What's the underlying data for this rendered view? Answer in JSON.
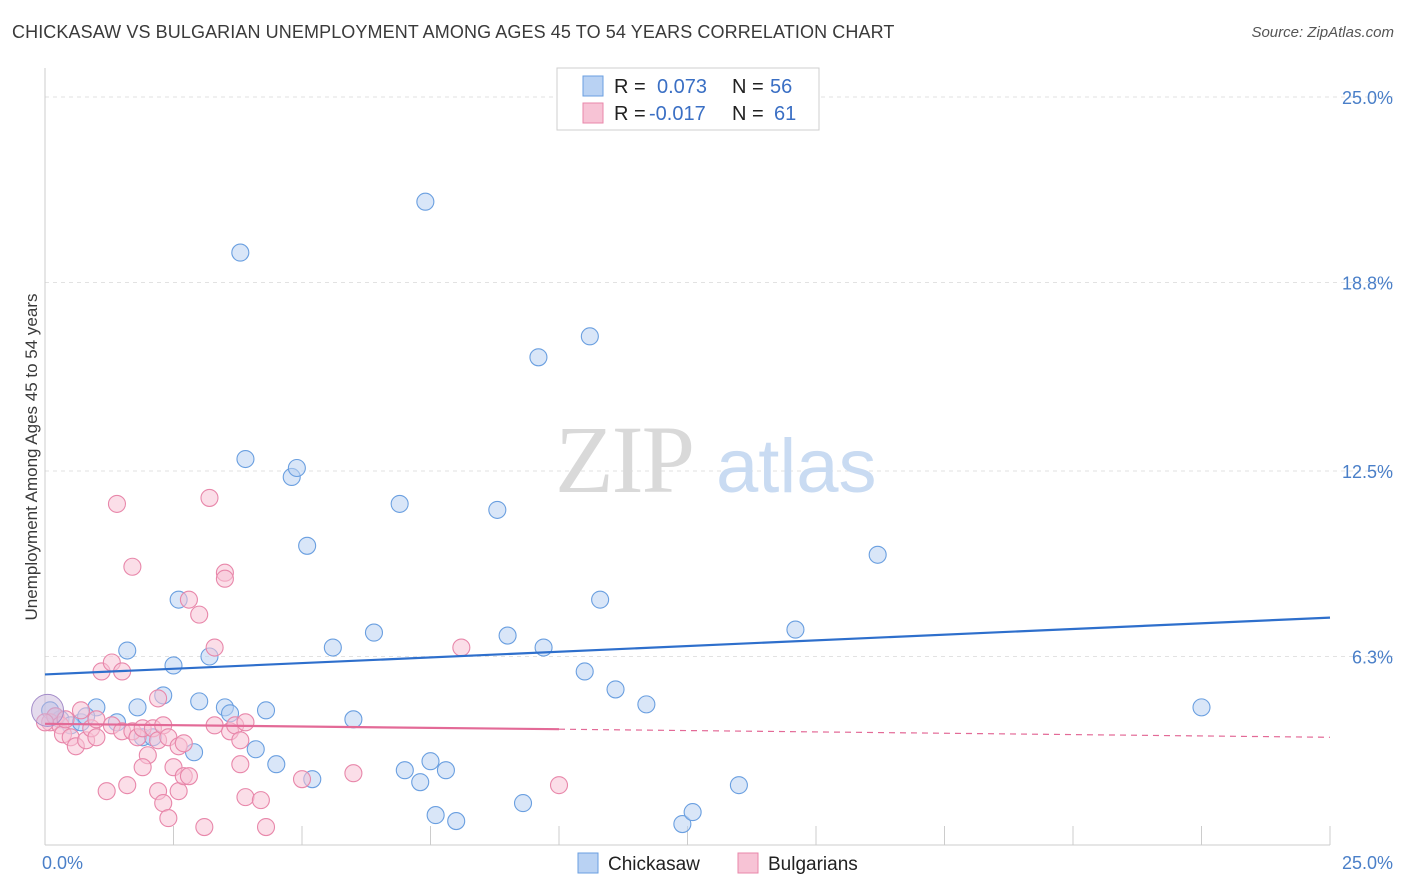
{
  "header": {
    "title": "CHICKASAW VS BULGARIAN UNEMPLOYMENT AMONG AGES 45 TO 54 YEARS CORRELATION CHART",
    "source": "Source: ZipAtlas.com"
  },
  "watermark": {
    "zip": "ZIP",
    "atlas": "atlas"
  },
  "chart_data": {
    "type": "scatter",
    "title": "CHICKASAW VS BULGARIAN UNEMPLOYMENT AMONG AGES 45 TO 54 YEARS CORRELATION CHART",
    "xlabel": "",
    "ylabel": "Unemployment Among Ages 45 to 54 years",
    "xlim": [
      0,
      25
    ],
    "ylim": [
      0,
      25
    ],
    "x_tick_labels": [
      "0.0%",
      "25.0%"
    ],
    "y_ticks": [
      {
        "value": 25.0,
        "label": "25.0%"
      },
      {
        "value": 18.8,
        "label": "18.8%"
      },
      {
        "value": 12.5,
        "label": "12.5%"
      },
      {
        "value": 6.3,
        "label": "6.3%"
      }
    ],
    "grid": true,
    "legend_position": "top-center",
    "legend": [
      {
        "name": "Chickasaw",
        "r_label": "R =",
        "r_value": "0.073",
        "n_label": "N =",
        "n_value": "56",
        "color": "#6a9fe0",
        "fill": "#b9d2f3"
      },
      {
        "name": "Bulgarians",
        "r_label": "R =",
        "r_value": "-0.017",
        "n_label": "N =",
        "n_value": "61",
        "color": "#e887aa",
        "fill": "#f7c3d5"
      }
    ],
    "series": [
      {
        "name": "Chickasaw",
        "color": "#6a9fe0",
        "fill": "#b9d2f3",
        "trend": {
          "x0": 0,
          "y0": 5.7,
          "x1": 25,
          "y1": 7.6,
          "color": "#2e6fcc",
          "dashed_from": null
        },
        "points": [
          [
            0.1,
            4.5
          ],
          [
            0.3,
            4.2
          ],
          [
            0.5,
            4.0
          ],
          [
            0.7,
            4.1
          ],
          [
            1.0,
            4.6
          ],
          [
            1.4,
            4.1
          ],
          [
            1.6,
            6.5
          ],
          [
            1.8,
            4.6
          ],
          [
            1.9,
            3.6
          ],
          [
            2.1,
            3.6
          ],
          [
            2.3,
            5.0
          ],
          [
            2.5,
            6.0
          ],
          [
            2.6,
            8.2
          ],
          [
            2.9,
            3.1
          ],
          [
            3.0,
            4.8
          ],
          [
            3.2,
            6.3
          ],
          [
            3.5,
            4.6
          ],
          [
            3.6,
            4.4
          ],
          [
            3.8,
            19.8
          ],
          [
            3.9,
            12.9
          ],
          [
            4.1,
            3.2
          ],
          [
            4.3,
            4.5
          ],
          [
            4.5,
            2.7
          ],
          [
            4.8,
            12.3
          ],
          [
            4.9,
            12.6
          ],
          [
            5.1,
            10.0
          ],
          [
            5.2,
            2.2
          ],
          [
            5.6,
            6.6
          ],
          [
            6.0,
            4.2
          ],
          [
            6.4,
            7.1
          ],
          [
            6.9,
            11.4
          ],
          [
            7.0,
            2.5
          ],
          [
            7.3,
            2.1
          ],
          [
            7.5,
            2.8
          ],
          [
            7.6,
            1.0
          ],
          [
            7.8,
            2.5
          ],
          [
            8.0,
            0.8
          ],
          [
            7.4,
            21.5
          ],
          [
            8.8,
            11.2
          ],
          [
            9.0,
            7.0
          ],
          [
            9.3,
            1.4
          ],
          [
            9.6,
            16.3
          ],
          [
            9.7,
            6.6
          ],
          [
            10.5,
            5.8
          ],
          [
            10.6,
            17.0
          ],
          [
            10.8,
            8.2
          ],
          [
            11.1,
            5.2
          ],
          [
            11.7,
            4.7
          ],
          [
            12.4,
            0.7
          ],
          [
            12.6,
            1.1
          ],
          [
            13.5,
            2.0
          ],
          [
            14.6,
            7.2
          ],
          [
            16.2,
            9.7
          ],
          [
            22.5,
            4.6
          ],
          [
            0.2,
            4.3
          ],
          [
            0.8,
            4.3
          ]
        ]
      },
      {
        "name": "Bulgarians",
        "color": "#e887aa",
        "fill": "#f7c3d5",
        "trend": {
          "x0": 0,
          "y0": 4.05,
          "x1": 25,
          "y1": 3.6,
          "color": "#e36a97",
          "dashed_from": 10.0
        },
        "points": [
          [
            0.1,
            4.1
          ],
          [
            0.2,
            4.3
          ],
          [
            0.3,
            4.0
          ],
          [
            0.35,
            3.7
          ],
          [
            0.4,
            4.2
          ],
          [
            0.5,
            3.6
          ],
          [
            0.6,
            3.3
          ],
          [
            0.7,
            4.5
          ],
          [
            0.8,
            3.5
          ],
          [
            0.9,
            3.9
          ],
          [
            1.0,
            3.6
          ],
          [
            1.0,
            4.2
          ],
          [
            1.1,
            5.8
          ],
          [
            1.2,
            1.8
          ],
          [
            1.3,
            4.0
          ],
          [
            1.3,
            6.1
          ],
          [
            1.5,
            3.8
          ],
          [
            1.5,
            5.8
          ],
          [
            1.6,
            2.0
          ],
          [
            1.7,
            3.8
          ],
          [
            1.8,
            3.6
          ],
          [
            1.9,
            3.9
          ],
          [
            2.0,
            3.0
          ],
          [
            2.1,
            3.9
          ],
          [
            2.2,
            3.5
          ],
          [
            2.3,
            4.0
          ],
          [
            2.4,
            3.6
          ],
          [
            2.5,
            2.6
          ],
          [
            2.6,
            3.3
          ],
          [
            2.7,
            3.4
          ],
          [
            1.4,
            11.4
          ],
          [
            1.7,
            9.3
          ],
          [
            1.9,
            2.6
          ],
          [
            2.2,
            1.8
          ],
          [
            2.3,
            1.4
          ],
          [
            2.4,
            0.9
          ],
          [
            2.6,
            1.8
          ],
          [
            2.7,
            2.3
          ],
          [
            2.8,
            2.3
          ],
          [
            2.2,
            4.9
          ],
          [
            2.8,
            8.2
          ],
          [
            3.0,
            7.7
          ],
          [
            3.2,
            11.6
          ],
          [
            3.3,
            6.6
          ],
          [
            3.5,
            9.1
          ],
          [
            3.5,
            8.9
          ],
          [
            3.6,
            3.8
          ],
          [
            3.7,
            4.0
          ],
          [
            3.8,
            3.5
          ],
          [
            3.8,
            2.7
          ],
          [
            3.9,
            4.1
          ],
          [
            3.9,
            1.6
          ],
          [
            4.2,
            1.5
          ],
          [
            4.3,
            0.6
          ],
          [
            5.0,
            2.2
          ],
          [
            6.0,
            2.4
          ],
          [
            8.1,
            6.6
          ],
          [
            10.0,
            2.0
          ],
          [
            3.3,
            4.0
          ],
          [
            3.1,
            0.6
          ],
          [
            0.0,
            4.1
          ]
        ]
      }
    ]
  }
}
